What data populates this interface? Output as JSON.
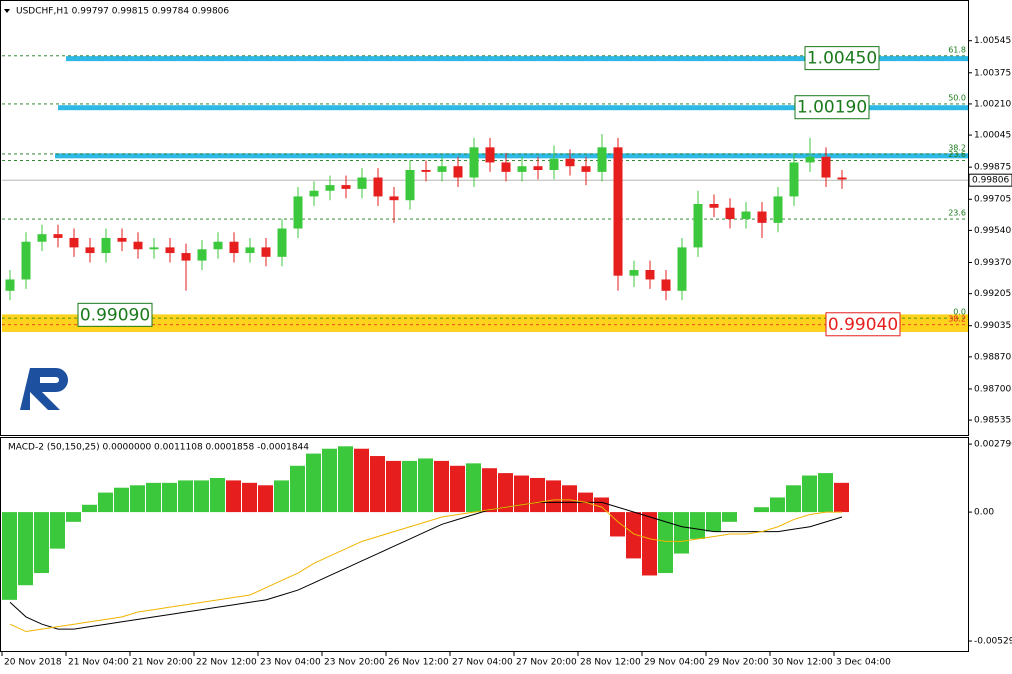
{
  "chart_data": [
    {
      "type": "candlestick",
      "title": "USDCHF,H1  0.99797 0.99815 0.99784 0.99806",
      "categories": [
        "20 Nov 2018",
        null,
        null,
        null,
        "21 Nov 04:00",
        null,
        null,
        null,
        "21 Nov 20:00",
        null,
        null,
        null,
        "22 Nov 12:00",
        null,
        null,
        null,
        "23 Nov 04:00",
        null,
        null,
        null,
        "23 Nov 20:00",
        null,
        null,
        null,
        "26 Nov 12:00",
        null,
        null,
        null,
        "27 Nov 04:00",
        null,
        null,
        null,
        "27 Nov 20:00",
        null,
        null,
        null,
        "28 Nov 12:00",
        null,
        null,
        null,
        "29 Nov 04:00",
        null,
        null,
        null,
        "29 Nov 20:00",
        null,
        null,
        null,
        "30 Nov 12:00",
        null,
        null,
        null,
        "3 Dec 04:00"
      ],
      "open": [
        0.9922,
        0.9928,
        0.9948,
        0.9952,
        0.995,
        0.9945,
        0.9942,
        0.995,
        0.9948,
        0.9944,
        0.9945,
        0.9942,
        0.9938,
        0.9944,
        0.9948,
        0.9942,
        0.9945,
        0.994,
        0.9955,
        0.9972,
        0.9975,
        0.9978,
        0.9976,
        0.9982,
        0.9972,
        0.997,
        0.9986,
        0.9985,
        0.9988,
        0.9982,
        0.9998,
        0.999,
        0.9985,
        0.9988,
        0.9986,
        0.9992,
        0.9988,
        0.9985,
        0.9998,
        0.993,
        0.9933,
        0.9928,
        0.9922,
        0.9945,
        0.9968,
        0.9966,
        0.996,
        0.9964,
        0.9958,
        0.9972,
        0.999,
        0.9993,
        0.9982
      ],
      "high": [
        0.9933,
        0.9953,
        0.9957,
        0.9957,
        0.9955,
        0.995,
        0.9955,
        0.9955,
        0.9953,
        0.995,
        0.995,
        0.9947,
        0.9949,
        0.9953,
        0.9953,
        0.995,
        0.995,
        0.996,
        0.9977,
        0.998,
        0.9983,
        0.9983,
        0.9987,
        0.9987,
        0.9977,
        0.9991,
        0.9991,
        0.9993,
        0.9993,
        1.0003,
        1.0003,
        0.9995,
        0.9993,
        0.9993,
        0.9999,
        0.9997,
        0.9993,
        1.0005,
        1.0003,
        0.9938,
        0.9938,
        0.9933,
        0.995,
        0.9975,
        0.9973,
        0.9971,
        0.9969,
        0.9969,
        0.9977,
        0.9995,
        1.0003,
        0.9998,
        0.9986
      ],
      "low": [
        0.9917,
        0.9923,
        0.9943,
        0.9945,
        0.994,
        0.9937,
        0.9937,
        0.9943,
        0.9939,
        0.9939,
        0.9937,
        0.9922,
        0.9933,
        0.9939,
        0.9937,
        0.9937,
        0.9935,
        0.9935,
        0.995,
        0.9967,
        0.997,
        0.9971,
        0.9971,
        0.9967,
        0.9958,
        0.9965,
        0.998,
        0.998,
        0.9977,
        0.9977,
        0.9985,
        0.998,
        0.998,
        0.9981,
        0.9981,
        0.9983,
        0.9978,
        0.998,
        0.9922,
        0.9924,
        0.9923,
        0.9917,
        0.9917,
        0.994,
        0.9961,
        0.9955,
        0.9955,
        0.995,
        0.9953,
        0.9967,
        0.9985,
        0.9977,
        0.9976
      ],
      "close": [
        0.9928,
        0.9948,
        0.9952,
        0.995,
        0.9945,
        0.9942,
        0.995,
        0.9948,
        0.9944,
        0.9945,
        0.9942,
        0.9938,
        0.9944,
        0.9948,
        0.9942,
        0.9945,
        0.994,
        0.9955,
        0.9972,
        0.9975,
        0.9978,
        0.9976,
        0.9982,
        0.9972,
        0.997,
        0.9986,
        0.9985,
        0.9988,
        0.9982,
        0.9998,
        0.999,
        0.9985,
        0.9988,
        0.9986,
        0.9992,
        0.9988,
        0.9985,
        0.9998,
        0.993,
        0.9933,
        0.9928,
        0.9922,
        0.9945,
        0.9968,
        0.9966,
        0.996,
        0.9964,
        0.9958,
        0.9972,
        0.999,
        0.9993,
        0.9982,
        0.9981
      ],
      "up_color": "#3cc83c",
      "down_color": "#e61e1e",
      "ylim": [
        0.98456,
        1.0075
      ],
      "yticks": [
        1.00545,
        1.00375,
        {
          "value": 1.0021,
          "label": "1.00210"
        },
        1.00045,
        0.99875,
        0.99705,
        {
          "value": 0.9954,
          "label": "0.99540"
        },
        {
          "value": 0.9937,
          "label": "0.99370"
        },
        0.99205,
        0.99035,
        {
          "value": 0.9887,
          "label": "0.98870"
        },
        {
          "value": 0.987,
          "label": "0.98700"
        },
        0.98535
      ],
      "current_price": 0.99806,
      "bands": [
        {
          "value": 1.0045,
          "color": "#2eb8e6"
        },
        {
          "value": 1.0019,
          "color": "#2eb8e6"
        },
        {
          "value": 0.99935,
          "color": "#2eb8e6"
        }
      ],
      "zone": {
        "from": 0.99002,
        "to": 0.99095,
        "color": "#ffd21e"
      },
      "price_boxes": [
        {
          "value": 1.0045,
          "label": "1.00450",
          "color": "#1a7a1a"
        },
        {
          "value": 1.0019,
          "label": "1.00190",
          "color": "#1a7a1a"
        },
        {
          "value": 0.9909,
          "label": "0.99090",
          "color": "#1a7a1a"
        },
        {
          "value": 0.9904,
          "label": "0.99040",
          "color": "#e61e1e"
        }
      ],
      "fib_levels": [
        {
          "price": 1.00465,
          "text": "61.8",
          "color": "#1a7a1a"
        },
        {
          "price": 1.0021,
          "text": "50.0",
          "color": "#1a7a1a"
        },
        {
          "price": 0.99945,
          "text": "38.2",
          "color": "#1a7a1a"
        },
        {
          "price": 0.9991,
          "text": "23.6",
          "color": "#1a7a1a"
        },
        {
          "price": 0.996,
          "text": "23.6",
          "color": "#1a7a1a"
        },
        {
          "price": 0.99075,
          "text": "0.0",
          "color": "#1a7a1a"
        },
        {
          "price": 0.9904,
          "text": "38.2",
          "color": "#e61e1e"
        }
      ]
    },
    {
      "type": "macd",
      "title": "MACD-2 (50,150,25) 0.0000000 0.0011108 0.0001858 -0.0001844",
      "histogram": [
        -0.0036,
        -0.003,
        -0.0025,
        -0.0015,
        -0.0004,
        0.0003,
        0.0008,
        0.001,
        0.0011,
        0.0012,
        0.0012,
        0.0013,
        0.0013,
        0.0014,
        0.0013,
        0.0012,
        0.0011,
        0.0013,
        0.0019,
        0.0024,
        0.0026,
        0.0027,
        0.0026,
        0.0023,
        0.0021,
        0.0021,
        0.0022,
        0.0021,
        0.0019,
        0.002,
        0.0018,
        0.0016,
        0.0015,
        0.0014,
        0.0013,
        0.0011,
        0.0008,
        0.0006,
        -0.001,
        -0.0019,
        -0.0026,
        -0.0025,
        -0.0017,
        -0.0011,
        -0.0008,
        -0.0004,
        0.0,
        0.0002,
        0.0006,
        0.0011,
        0.0015,
        0.0016,
        0.0012
      ],
      "series": [
        {
          "color": "#000000",
          "values": [
            -0.0037,
            -0.0043,
            -0.0046,
            -0.0048,
            -0.0048,
            -0.0047,
            -0.0046,
            -0.0045,
            -0.0044,
            -0.0043,
            -0.0042,
            -0.0041,
            -0.004,
            -0.0039,
            -0.0038,
            -0.0037,
            -0.0036,
            -0.0034,
            -0.0032,
            -0.0029,
            -0.0026,
            -0.0023,
            -0.002,
            -0.0017,
            -0.0014,
            -0.0011,
            -0.0008,
            -0.0005,
            -0.0003,
            -0.0001,
            0.0001,
            0.0002,
            0.0003,
            0.0004,
            0.0004,
            0.0004,
            0.0004,
            0.0004,
            0.0002,
            0.0,
            -0.0002,
            -0.0004,
            -0.0006,
            -0.0007,
            -0.0008,
            -0.0008,
            -0.0008,
            -0.0008,
            -0.0008,
            -0.0007,
            -0.0006,
            -0.0004,
            -0.0002
          ]
        },
        {
          "color": "#f0b400",
          "values": [
            -0.0046,
            -0.0049,
            -0.0048,
            -0.0047,
            -0.0046,
            -0.0045,
            -0.0044,
            -0.0043,
            -0.0041,
            -0.004,
            -0.0039,
            -0.0038,
            -0.0037,
            -0.0036,
            -0.0035,
            -0.0034,
            -0.0031,
            -0.0028,
            -0.0025,
            -0.0021,
            -0.0018,
            -0.0015,
            -0.0012,
            -0.001,
            -0.0008,
            -0.0006,
            -0.0004,
            -0.0002,
            -0.0001,
            0.0,
            0.0001,
            0.0002,
            0.0003,
            0.0004,
            0.0005,
            0.0005,
            0.0004,
            0.0002,
            -0.0004,
            -0.0009,
            -0.0011,
            -0.0012,
            -0.0012,
            -0.0011,
            -0.001,
            -0.0009,
            -0.0009,
            -0.0008,
            -0.0006,
            -0.0003,
            -0.0001,
            0.0,
            0.0
          ]
        }
      ],
      "up_color": "#3cc83c",
      "down_color": "#e61e1e",
      "ylim": [
        -0.00574,
        0.00304
      ],
      "yticks": [
        {
          "value": 0.00279,
          "label": "0.002790"
        },
        {
          "value": 0,
          "label": "0.00"
        },
        {
          "value": -0.00529,
          "label": "-0.005290"
        }
      ]
    }
  ]
}
